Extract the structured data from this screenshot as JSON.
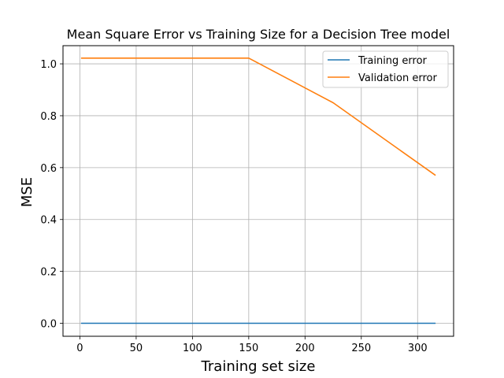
{
  "chart_data": {
    "type": "line",
    "title": "Mean Square Error vs Training Size for a Decision Tree model",
    "xlabel": "Training set size",
    "ylabel": "MSE",
    "xlim": [
      -15,
      332
    ],
    "ylim": [
      -0.05,
      1.07
    ],
    "xticks": [
      0,
      50,
      100,
      150,
      200,
      250,
      300
    ],
    "yticks": [
      0.0,
      0.2,
      0.4,
      0.6,
      0.8,
      1.0
    ],
    "xtick_labels": [
      "0",
      "50",
      "100",
      "150",
      "200",
      "250",
      "300"
    ],
    "ytick_labels": [
      "0.0",
      "0.2",
      "0.4",
      "0.6",
      "0.8",
      "1.0"
    ],
    "grid": true,
    "legend_position": "top-right",
    "series": [
      {
        "name": "Training error",
        "color": "#1f77b4",
        "x": [
          1,
          75,
          150,
          225,
          316
        ],
        "y": [
          0.0,
          0.0,
          0.0,
          0.0,
          0.0
        ]
      },
      {
        "name": "Validation error",
        "color": "#ff7f0e",
        "x": [
          1,
          75,
          150,
          225,
          316
        ],
        "y": [
          1.022,
          1.022,
          1.022,
          0.85,
          0.57
        ]
      }
    ]
  }
}
